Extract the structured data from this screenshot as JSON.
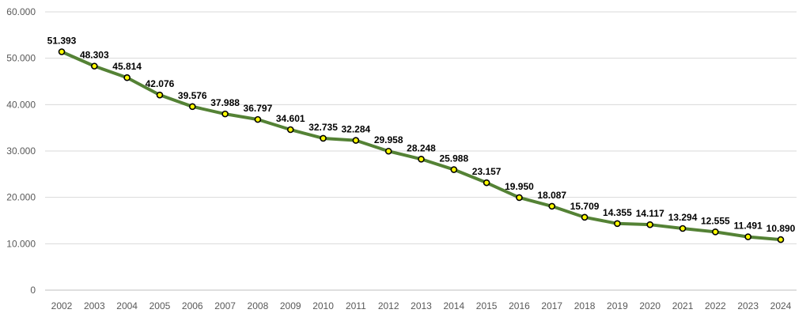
{
  "chart_data": {
    "type": "line",
    "title": "",
    "xlabel": "",
    "ylabel": "",
    "categories": [
      "2002",
      "2003",
      "2004",
      "2005",
      "2006",
      "2007",
      "2008",
      "2009",
      "2010",
      "2011",
      "2012",
      "2013",
      "2014",
      "2015",
      "2016",
      "2017",
      "2018",
      "2019",
      "2020",
      "2021",
      "2022",
      "2023",
      "2024"
    ],
    "series": [
      {
        "values": [
          51393,
          48303,
          45814,
          42076,
          39576,
          37988,
          36797,
          34601,
          32735,
          32284,
          29958,
          28248,
          25988,
          23157,
          19950,
          18087,
          15709,
          14355,
          14117,
          13294,
          12555,
          11491,
          10890
        ],
        "data_labels": [
          "51.393",
          "48.303",
          "45.814",
          "42.076",
          "39.576",
          "37.988",
          "36.797",
          "34.601",
          "32.735",
          "32.284",
          "29.958",
          "28.248",
          "25.988",
          "23.157",
          "19.950",
          "18.087",
          "15.709",
          "14.355",
          "14.117",
          "13.294",
          "12.555",
          "11.491",
          "10.890"
        ],
        "line_color": "#548235",
        "marker_fill": "#ffff00",
        "marker_edge": "#000000"
      }
    ],
    "ylim": [
      0,
      60000
    ],
    "yticks": [
      0,
      10000,
      20000,
      30000,
      40000,
      50000,
      60000
    ],
    "ytick_labels": [
      "0",
      "10.000",
      "20.000",
      "30.000",
      "40.000",
      "50.000",
      "60.000"
    ],
    "grid": true,
    "legend": "none"
  }
}
